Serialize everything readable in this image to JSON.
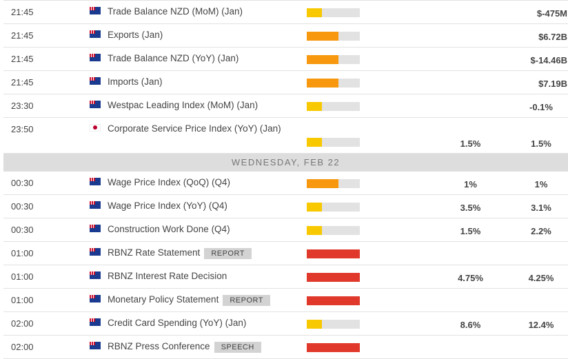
{
  "colors": {
    "low": "#f8c800",
    "medium": "#f7980f",
    "high": "#e0392b",
    "bar_bg": "#e2e2e2"
  },
  "rows_before": [
    {
      "time": "21:45",
      "flag": "nz-flag",
      "event": "Trade Balance NZD (MoM) (Jan)",
      "tag": "",
      "impact": "low",
      "forecast": "",
      "previous": "$-475M"
    },
    {
      "time": "21:45",
      "flag": "nz-flag",
      "event": "Exports (Jan)",
      "tag": "",
      "impact": "medium",
      "forecast": "",
      "previous": "$6.72B"
    },
    {
      "time": "21:45",
      "flag": "nz-flag",
      "event": "Trade Balance NZD (YoY) (Jan)",
      "tag": "",
      "impact": "medium",
      "forecast": "",
      "previous": "$-14.46B"
    },
    {
      "time": "21:45",
      "flag": "nz-flag",
      "event": "Imports (Jan)",
      "tag": "",
      "impact": "medium",
      "forecast": "",
      "previous": "$7.19B"
    },
    {
      "time": "23:30",
      "flag": "nz-flag",
      "event": "Westpac Leading Index (MoM) (Jan)",
      "tag": "",
      "impact": "low",
      "forecast": "",
      "previous": "-0.1%"
    },
    {
      "time": "23:50",
      "flag": "jp-flag",
      "event": "Corporate Service Price Index (YoY) (Jan)",
      "tag": "",
      "impact": "low",
      "forecast": "1.5%",
      "previous": "1.5%"
    }
  ],
  "day_header": "WEDNESDAY, FEB 22",
  "rows_after": [
    {
      "time": "00:30",
      "flag": "au-flag",
      "event": "Wage Price Index (QoQ) (Q4)",
      "tag": "",
      "impact": "medium",
      "forecast": "1%",
      "previous": "1%"
    },
    {
      "time": "00:30",
      "flag": "au-flag",
      "event": "Wage Price Index (YoY) (Q4)",
      "tag": "",
      "impact": "low",
      "forecast": "3.5%",
      "previous": "3.1%"
    },
    {
      "time": "00:30",
      "flag": "au-flag",
      "event": "Construction Work Done (Q4)",
      "tag": "",
      "impact": "low",
      "forecast": "1.5%",
      "previous": "2.2%"
    },
    {
      "time": "01:00",
      "flag": "nz-flag",
      "event": "RBNZ Rate Statement",
      "tag": "REPORT",
      "impact": "high",
      "forecast": "",
      "previous": ""
    },
    {
      "time": "01:00",
      "flag": "nz-flag",
      "event": "RBNZ Interest Rate Decision",
      "tag": "",
      "impact": "high",
      "forecast": "4.75%",
      "previous": "4.25%"
    },
    {
      "time": "01:00",
      "flag": "nz-flag",
      "event": "Monetary Policy Statement",
      "tag": "REPORT",
      "impact": "high",
      "forecast": "",
      "previous": ""
    },
    {
      "time": "02:00",
      "flag": "nz-flag",
      "event": "Credit Card Spending (YoY) (Jan)",
      "tag": "",
      "impact": "low",
      "forecast": "8.6%",
      "previous": "12.4%"
    },
    {
      "time": "02:00",
      "flag": "nz-flag",
      "event": "RBNZ Press Conference",
      "tag": "SPEECH",
      "impact": "high",
      "forecast": "",
      "previous": ""
    }
  ]
}
